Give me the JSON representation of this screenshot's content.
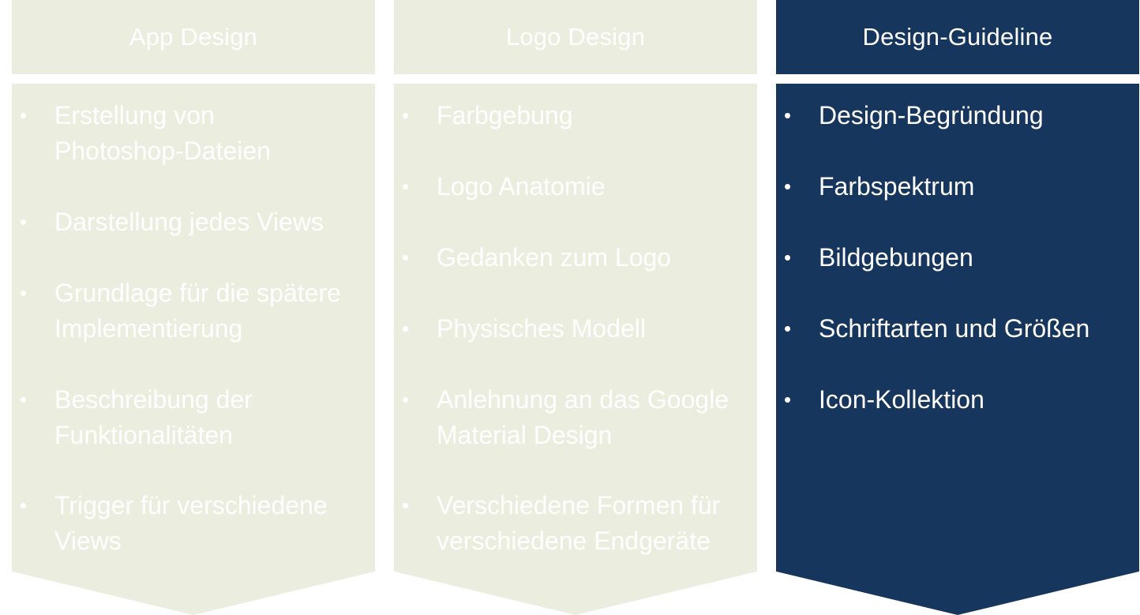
{
  "colors": {
    "light_fill": "#ebeedf",
    "dark_fill": "#17365d",
    "text": "#ffffff"
  },
  "columns": [
    {
      "title": "App Design",
      "theme": "light",
      "items": [
        "Erstellung von\nPhotoshop-Dateien",
        "Darstellung jedes Views",
        "Grundlage für die spätere\nImplementierung",
        "Beschreibung der\nFunktionalitäten",
        "Trigger für verschiedene\nViews"
      ]
    },
    {
      "title": "Logo Design",
      "theme": "light",
      "items": [
        "Farbgebung",
        "Logo Anatomie",
        "Gedanken zum Logo",
        "Physisches Modell",
        "Anlehnung an das Google\nMaterial Design",
        "Verschiedene Formen für\nverschiedene Endgeräte"
      ]
    },
    {
      "title": "Design-Guideline",
      "theme": "dark",
      "items": [
        "Design-Begründung",
        "Farbspektrum",
        "Bildgebungen",
        "Schriftarten und Größen",
        "Icon-Kollektion"
      ]
    }
  ]
}
